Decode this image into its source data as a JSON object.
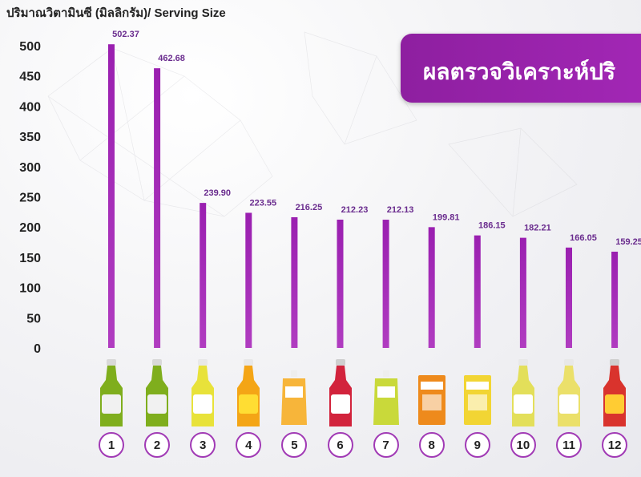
{
  "chart_data": {
    "type": "bar",
    "ylabel": "ปริมาณวิตามินซี (มิลลิกรัม)/ Serving Size",
    "title": "ผลตรวจวิเคราะห์ปริ",
    "categories": [
      "1",
      "2",
      "3",
      "4",
      "5",
      "6",
      "7",
      "8",
      "9",
      "10",
      "11",
      "12"
    ],
    "values": [
      502.37,
      462.68,
      239.9,
      223.55,
      216.25,
      212.23,
      212.13,
      199.81,
      186.15,
      182.21,
      166.05,
      159.25
    ],
    "value_labels": [
      "502.37",
      "462.68",
      "239.90",
      "223.55",
      "216.25",
      "212.23",
      "212.13",
      "199.81",
      "186.15",
      "182.21",
      "166.05",
      "159.25"
    ],
    "ylim": [
      0,
      500
    ],
    "yticks": [
      "0",
      "50",
      "100",
      "150",
      "200",
      "250",
      "300",
      "350",
      "400",
      "450",
      "500"
    ],
    "bar_color": "#a12bb4",
    "label_color": "#6a2c8e",
    "grid": false
  },
  "products": [
    {
      "icon": "bottle-green-icon",
      "cap": "#d9d9d9",
      "body": "#7fae1d",
      "label": "#f1f1f1"
    },
    {
      "icon": "bottle-green-icon",
      "cap": "#d9d9d9",
      "body": "#7fae1d",
      "label": "#f1f1f1"
    },
    {
      "icon": "bottle-yellow-icon",
      "cap": "#e8e8e8",
      "body": "#e8e23a",
      "label": "#ffffff"
    },
    {
      "icon": "bottle-orange-icon",
      "cap": "#e8e8e8",
      "body": "#f4a516",
      "label": "#ffdd33"
    },
    {
      "icon": "pouch-orange-icon",
      "cap": "#eeeeee",
      "body": "#f7b53a",
      "label": "#ffffff"
    },
    {
      "icon": "bottle-red-icon",
      "cap": "#cfcfcf",
      "body": "#d2233c",
      "label": "#ffffff"
    },
    {
      "icon": "pouch-lemon-icon",
      "cap": "#eeeeee",
      "body": "#c9d93a",
      "label": "#ffffff"
    },
    {
      "icon": "box-orange-icon",
      "cap": "#ffffff",
      "body": "#ee8a1c",
      "label": "#ffffff"
    },
    {
      "icon": "box-yellow-icon",
      "cap": "#ffffff",
      "body": "#f2d534",
      "label": "#ffffff"
    },
    {
      "icon": "bottle-yellow-icon",
      "cap": "#e8e8e8",
      "body": "#e3df5a",
      "label": "#ffffff"
    },
    {
      "icon": "bottle-yellow-icon",
      "cap": "#e8e8e8",
      "body": "#ebe06a",
      "label": "#ffffff"
    },
    {
      "icon": "bottle-red-icon",
      "cap": "#cfcfcf",
      "body": "#d9332d",
      "label": "#ffcc33"
    }
  ]
}
